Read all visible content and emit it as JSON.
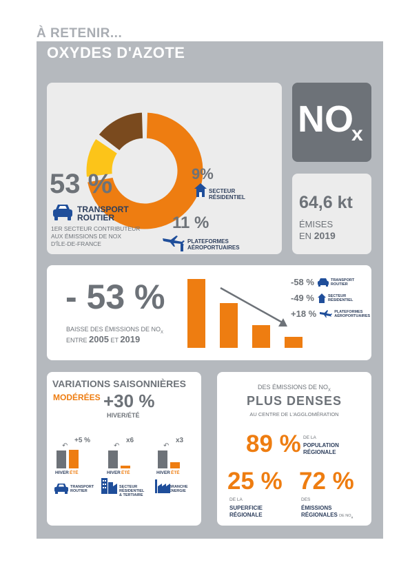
{
  "header": {
    "kicker": "À RETENIR...",
    "title": "OXYDES D'AZOTE"
  },
  "sources": {
    "slices": [
      {
        "name": "transport",
        "value": 53,
        "color": "#ee7d11"
      },
      {
        "name": "residential",
        "value": 9,
        "color": "#fcc419"
      },
      {
        "name": "airports",
        "value": 11,
        "color": "#7a4a1e"
      }
    ],
    "transport_pct": "53 %",
    "transport_label": "TRANSPORT ROUTIER",
    "transport_note_1": "1ER SECTEUR CONTRIBUTEUR",
    "transport_note_2": "AUX ÉMISSIONS DE NOX",
    "transport_note_3": "D'ÎLE-DE-FRANCE",
    "residential_pct": "9%",
    "residential_label_1": "SECTEUR",
    "residential_label_2": "RÉSIDENTIEL",
    "airports_pct": "11 %",
    "airports_label_1": "PLATEFORMES",
    "airports_label_2": "AÉROPORTUAIRES"
  },
  "nox_badge": {
    "main": "NO",
    "sub": "x"
  },
  "emissions": {
    "value": "64,6 kt",
    "line1": "ÉMISES",
    "line2_prefix": "EN",
    "year": "2019"
  },
  "trend": {
    "big": "- 53 %",
    "text1": "BAISSE DES ÉMISSIONS DE NO",
    "text1_sub": "X",
    "text2_prefix": "ENTRE",
    "y1": "2005",
    "and": "ET",
    "y2": "2019",
    "bars": [
      100,
      65,
      33,
      16
    ],
    "legend": [
      {
        "pct": "-58 %",
        "l1": "TRANSPORT",
        "l2": "ROUTIER"
      },
      {
        "pct": "-49 %",
        "l1": "SECTEUR",
        "l2": "RÉSIDENTIEL"
      },
      {
        "pct": "+18 %",
        "l1": "PLATEFORMES",
        "l2": "AÉROPORTUAIRES"
      }
    ]
  },
  "seasonal": {
    "title": "VARIATIONS SAISONNIÈRES",
    "moderate": "MODÉRÉES",
    "pct": "+30 %",
    "subtitle": "HIVER/ÉTÉ",
    "groups": [
      {
        "factor": "+5 %",
        "winter": "HIVER",
        "summer": "ÉTÉ",
        "winter_val": 100,
        "summer_val": 105,
        "l1": "TRANSPORT",
        "l2": "ROUTIER",
        "l3": ""
      },
      {
        "factor": "x6",
        "winter": "HIVER",
        "summer": "ÉTÉ",
        "winter_val": 100,
        "summer_val": 17,
        "l1": "SECTEUR",
        "l2": "RÉSIDENTIEL",
        "l3": "& TERTIAIRE"
      },
      {
        "factor": "x3",
        "winter": "HIVER",
        "summer": "ÉTÉ",
        "winter_val": 100,
        "summer_val": 33,
        "l1": "BRANCHE",
        "l2": "ÉNERGIE",
        "l3": ""
      }
    ]
  },
  "density": {
    "top": "DES ÉMISSIONS DE NO",
    "top_sub": "X",
    "title": "PLUS DENSES",
    "sub": "AU CENTRE DE L'AGGLOMÉRATION",
    "p89": "89 %",
    "p89_small": "DE LA",
    "p89_l1": "POPULATION",
    "p89_l2": "RÉGIONALE",
    "p25": "25 %",
    "p25_small": "DE LA",
    "p25_l1": "SUPERFICIE",
    "p25_l2": "RÉGIONALE",
    "p72": "72 %",
    "p72_small": "DES",
    "p72_l1": "ÉMISSIONS",
    "p72_l2": "RÉGIONALES",
    "p72_tail": "DE NO",
    "p72_tail_sub": "X"
  }
}
